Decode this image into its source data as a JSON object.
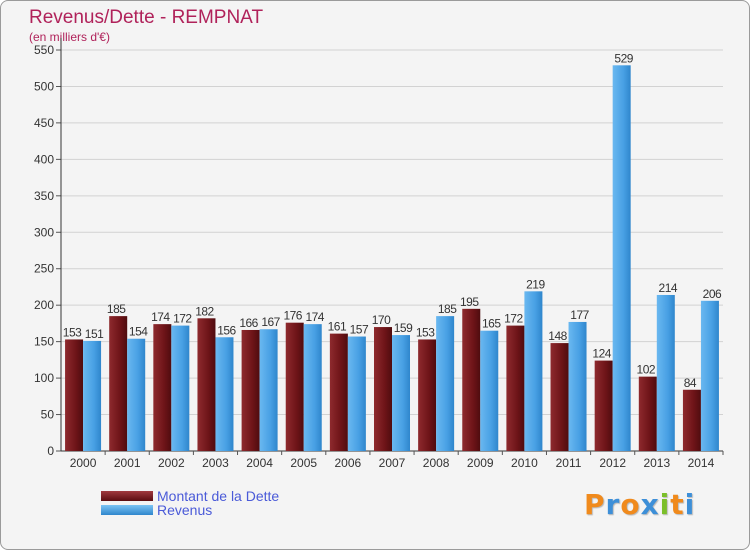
{
  "title": "Revenus/Dette - REMPNAT",
  "subtitle": "(en milliers d'€)",
  "logo_text": "Proxiti",
  "chart_data": {
    "type": "bar",
    "categories": [
      "2000",
      "2001",
      "2002",
      "2003",
      "2004",
      "2005",
      "2006",
      "2007",
      "2008",
      "2009",
      "2010",
      "2011",
      "2012",
      "2013",
      "2014"
    ],
    "series": [
      {
        "name": "Montant de la Dette",
        "color": "#7a1b1f",
        "values": [
          153,
          185,
          174,
          182,
          166,
          176,
          161,
          170,
          153,
          195,
          172,
          148,
          124,
          102,
          84
        ]
      },
      {
        "name": "Revenus",
        "color": "#4aa3e6",
        "values": [
          151,
          154,
          172,
          156,
          167,
          174,
          157,
          159,
          185,
          165,
          219,
          177,
          529,
          214,
          206
        ]
      }
    ],
    "ylim": [
      0,
      550
    ],
    "yticks": [
      0,
      50,
      100,
      150,
      200,
      250,
      300,
      350,
      400,
      450,
      500,
      550
    ],
    "grid": true,
    "legend": "bottom-left"
  }
}
